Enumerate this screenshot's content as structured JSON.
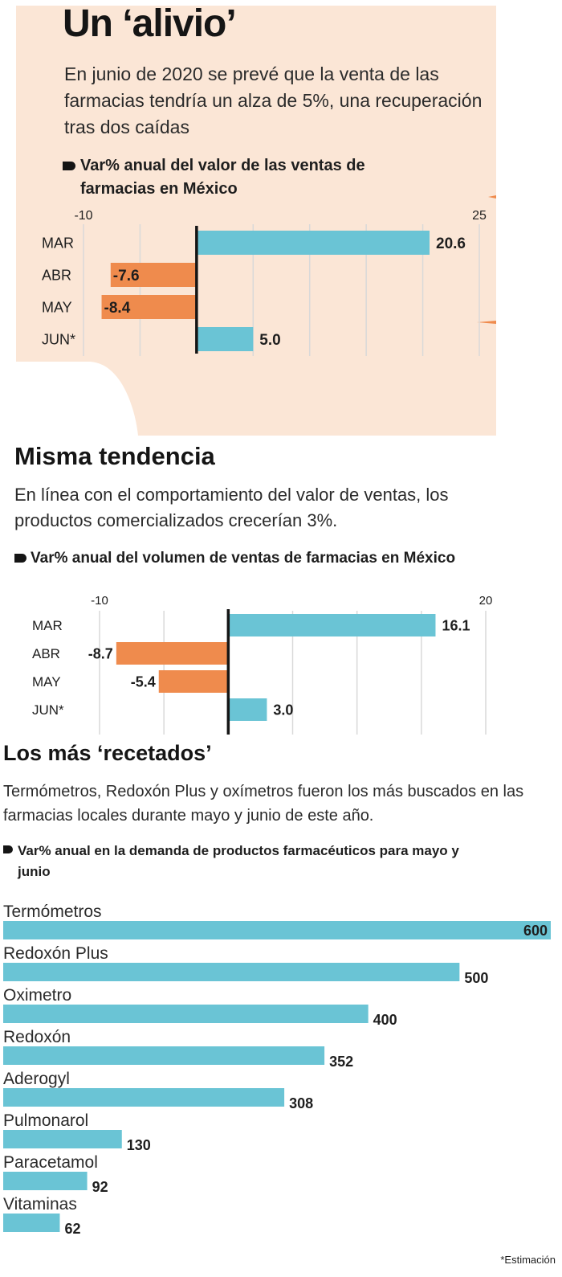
{
  "section1": {
    "title": "Un ‘alivio’",
    "subtitle": "En junio de 2020 se prevé que la venta de las farmacias tendría un alza de 5%, una recuperación tras dos caídas",
    "chart_label": "Var% anual del valor de las ventas de farmacias en México"
  },
  "section2": {
    "title": "Misma tendencia",
    "subtitle": "En línea con el comportamiento del valor de ventas, los productos comercializados crecerían 3%.",
    "chart_label": "Var% anual del volumen de ventas de farmacias en México"
  },
  "section3": {
    "title": "Los más ‘recetados’",
    "subtitle": "Termómetros, Redoxón Plus y oxímetros fueron los más buscados en las farmacias locales durante mayo y junio de este año.",
    "chart_label": "Var% anual en la demanda de productos farmacéuticos para mayo y junio"
  },
  "footnote": "*Estimación",
  "colors": {
    "positive": "#6ac4d5",
    "negative": "#ef8b4d",
    "panel": "#fbe6d6",
    "text": "#1e1e1e"
  },
  "chart_data": [
    {
      "type": "bar",
      "orientation": "horizontal",
      "categories": [
        "MAR",
        "ABR",
        "MAY",
        "JUN*"
      ],
      "values": [
        20.6,
        -7.6,
        -8.4,
        5.0
      ],
      "value_labels": [
        "20.6",
        "-7.6",
        "-8.4",
        "5.0"
      ],
      "xlim": [
        -10,
        25
      ],
      "ticks": [
        "-10",
        "25"
      ],
      "grid": true
    },
    {
      "type": "bar",
      "orientation": "horizontal",
      "categories": [
        "MAR",
        "ABR",
        "MAY",
        "JUN*"
      ],
      "values": [
        16.1,
        -8.7,
        -5.4,
        3.0
      ],
      "value_labels": [
        "16.1",
        "-8.7",
        "-5.4",
        "3.0"
      ],
      "xlim": [
        -10,
        20
      ],
      "ticks": [
        "-10",
        "20"
      ],
      "grid": true
    },
    {
      "type": "bar",
      "orientation": "horizontal",
      "categories": [
        "Termómetros",
        "Redoxón Plus",
        "Oximetro",
        "Redoxón",
        "Aderogyl",
        "Pulmonarol",
        "Paracetamol",
        "Vitaminas"
      ],
      "values": [
        600,
        500,
        400,
        352,
        308,
        130,
        92,
        62
      ],
      "value_labels": [
        "600",
        "500",
        "400",
        "352",
        "308",
        "130",
        "92",
        "62"
      ],
      "xlim": [
        0,
        600
      ],
      "grid": false
    }
  ]
}
